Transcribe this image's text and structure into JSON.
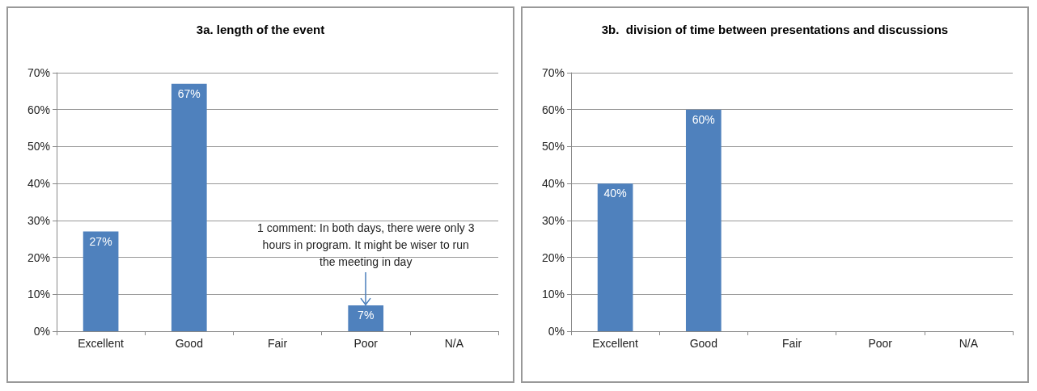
{
  "chart_data": [
    {
      "type": "bar",
      "title": "3a. length of the event",
      "categories": [
        "Excellent",
        "Good",
        "Fair",
        "Poor",
        "N/A"
      ],
      "series": [
        {
          "color": "#4f81bd",
          "values": [
            27,
            67,
            null,
            7,
            null
          ],
          "value_labels": [
            "27%",
            "67%",
            null,
            "7%",
            null
          ]
        }
      ],
      "ylim": [
        0,
        70
      ],
      "yticks": [
        {
          "value": 0,
          "label": "0%"
        },
        {
          "value": 10,
          "label": "10%"
        },
        {
          "value": 20,
          "label": "20%"
        },
        {
          "value": 30,
          "label": "30%"
        },
        {
          "value": 40,
          "label": "40%"
        },
        {
          "value": 50,
          "label": "50%"
        },
        {
          "value": 60,
          "label": "60%"
        },
        {
          "value": 70,
          "label": "70%"
        }
      ],
      "grid": "y",
      "annotations": [
        {
          "text": "1 comment: In both days, there were only 3 hours in program. It might be wiser to run the meeting in day",
          "x": "Poor",
          "y": 7
        }
      ]
    },
    {
      "type": "bar",
      "title": "3b.  division of time between presentations and discussions",
      "categories": [
        "Excellent",
        "Good",
        "Fair",
        "Poor",
        "N/A"
      ],
      "series": [
        {
          "color": "#4f81bd",
          "values": [
            40,
            60,
            null,
            null,
            null
          ],
          "value_labels": [
            "40%",
            "60%",
            null,
            null,
            null
          ]
        }
      ],
      "ylim": [
        0,
        70
      ],
      "yticks": [
        {
          "value": 0,
          "label": "0%"
        },
        {
          "value": 10,
          "label": "10%"
        },
        {
          "value": 20,
          "label": "20%"
        },
        {
          "value": 30,
          "label": "30%"
        },
        {
          "value": 40,
          "label": "40%"
        },
        {
          "value": 50,
          "label": "50%"
        },
        {
          "value": 60,
          "label": "60%"
        },
        {
          "value": 70,
          "label": "70%"
        }
      ],
      "grid": "y"
    }
  ]
}
